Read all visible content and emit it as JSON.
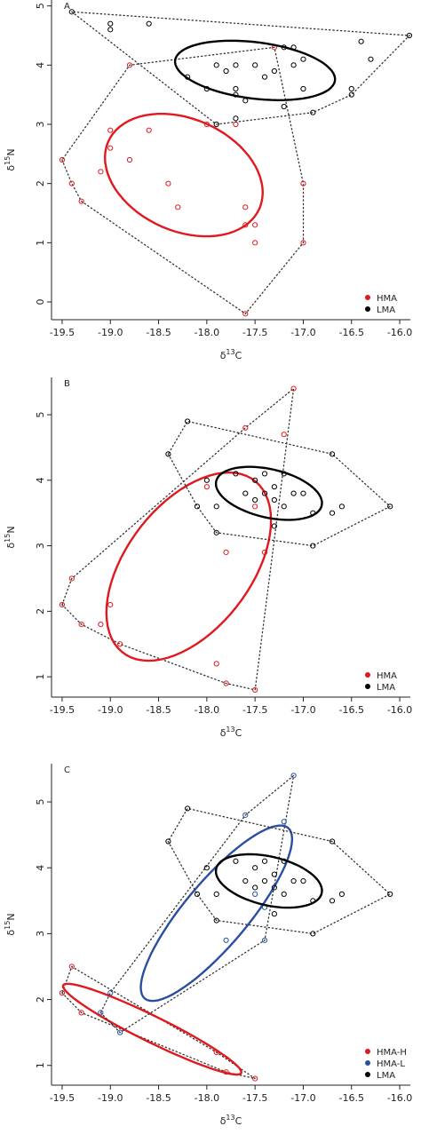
{
  "chart_data": [
    {
      "type": "scatter",
      "panel_label": "A",
      "xlabel_parts": [
        "δ",
        "13",
        "C"
      ],
      "ylabel_parts": [
        "δ",
        "15",
        "N"
      ],
      "xlim": [
        -19.61,
        -15.89
      ],
      "ylim": [
        -0.3,
        5.1
      ],
      "xticks": [
        -19.5,
        {
          "value": -19,
          "label": "-19.0"
        },
        -18.5,
        {
          "value": -18,
          "label": "-18.0"
        },
        -17.5,
        {
          "value": -17,
          "label": "-17.0"
        },
        -16.5,
        {
          "value": -16,
          "label": "-16.0"
        }
      ],
      "yticks": [
        0,
        1,
        2,
        3,
        4,
        5
      ],
      "legend": "lower right",
      "series": [
        {
          "name": "HMA",
          "color": "#e0191e",
          "x": [
            -19.5,
            -19.4,
            -19.3,
            -19.1,
            -19.0,
            -19.0,
            -18.8,
            -18.8,
            -18.6,
            -18.4,
            -18.3,
            -18.0,
            -17.7,
            -17.6,
            -17.6,
            -17.5,
            -17.5,
            -17.6,
            -17.0,
            -17.0,
            -17.3
          ],
          "values": [
            2.4,
            2.0,
            1.7,
            2.2,
            2.6,
            2.9,
            2.4,
            4.0,
            2.9,
            2.0,
            1.6,
            3.0,
            3.0,
            1.6,
            1.3,
            1.3,
            1.0,
            -0.2,
            2.0,
            1.0,
            4.3
          ]
        },
        {
          "name": "LMA",
          "color": "#000000",
          "x": [
            -19.4,
            -19.0,
            -19.0,
            -18.6,
            -18.2,
            -18.0,
            -17.9,
            -17.9,
            -17.8,
            -17.7,
            -17.7,
            -17.7,
            -17.7,
            -17.6,
            -17.5,
            -17.4,
            -17.3,
            -17.2,
            -17.2,
            -17.1,
            -17.1,
            -17.0,
            -17.0,
            -16.9,
            -16.5,
            -16.5,
            -16.4,
            -16.3,
            -15.9
          ],
          "values": [
            4.9,
            4.7,
            4.6,
            4.7,
            3.8,
            3.6,
            3.0,
            4.0,
            3.9,
            4.0,
            3.6,
            3.5,
            3.1,
            3.4,
            4.0,
            3.8,
            3.9,
            4.3,
            3.3,
            4.3,
            4.0,
            4.1,
            3.6,
            3.2,
            3.6,
            3.5,
            4.4,
            4.1,
            4.5
          ]
        }
      ]
    },
    {
      "type": "scatter",
      "panel_label": "B",
      "xlabel_parts": [
        "δ",
        "13",
        "C"
      ],
      "ylabel_parts": [
        "δ",
        "15",
        "N"
      ],
      "xlim": [
        -19.61,
        -15.89
      ],
      "ylim": [
        0.69,
        5.57
      ],
      "xticks": [
        -19.5,
        {
          "value": -19,
          "label": "-19.0"
        },
        -18.5,
        {
          "value": -18,
          "label": "-18.0"
        },
        -17.5,
        {
          "value": -17,
          "label": "-17.0"
        },
        -16.5,
        {
          "value": -16,
          "label": "-16.0"
        }
      ],
      "yticks": [
        1,
        2,
        3,
        4,
        5
      ],
      "legend": "lower right",
      "series": [
        {
          "name": "HMA",
          "color": "#e0191e",
          "x": [
            -19.5,
            -19.4,
            -19.3,
            -19.1,
            -19.0,
            -18.9,
            -18.0,
            -17.9,
            -17.8,
            -17.8,
            -17.6,
            -17.5,
            -17.5,
            -17.4,
            -17.2,
            -17.1
          ],
          "values": [
            2.1,
            2.5,
            1.8,
            1.8,
            2.1,
            1.5,
            3.9,
            1.2,
            0.9,
            2.9,
            4.8,
            3.6,
            0.8,
            2.9,
            4.7,
            5.4
          ]
        },
        {
          "name": "LMA",
          "color": "#000000",
          "x": [
            -18.4,
            -18.2,
            -18.0,
            -18.1,
            -17.9,
            -17.9,
            -17.7,
            -17.6,
            -17.5,
            -17.5,
            -17.4,
            -17.4,
            -17.3,
            -17.3,
            -17.3,
            -17.2,
            -17.1,
            -17.0,
            -16.9,
            -16.9,
            -16.7,
            -16.7,
            -16.6,
            -16.1,
            -17.2
          ],
          "values": [
            4.4,
            4.9,
            4.0,
            3.6,
            3.2,
            3.6,
            4.1,
            3.8,
            3.7,
            4.0,
            4.1,
            3.8,
            3.9,
            3.7,
            3.3,
            4.1,
            3.8,
            3.8,
            3.5,
            3.0,
            4.4,
            3.5,
            3.6,
            3.6,
            3.6
          ]
        }
      ]
    },
    {
      "type": "scatter",
      "panel_label": "C",
      "xlabel_parts": [
        "δ",
        "13",
        "C"
      ],
      "ylabel_parts": [
        "δ",
        "15",
        "N"
      ],
      "xlim": [
        -19.61,
        -15.89
      ],
      "ylim": [
        0.7,
        5.58
      ],
      "xticks": [
        -19.5,
        {
          "value": -19,
          "label": "-19.0"
        },
        -18.5,
        {
          "value": -18,
          "label": "-18.0"
        },
        -17.5,
        {
          "value": -17,
          "label": "-17.0"
        },
        -16.5,
        {
          "value": -16,
          "label": "-16.0"
        }
      ],
      "yticks": [
        1,
        2,
        3,
        4,
        5
      ],
      "legend": "lower right",
      "series": [
        {
          "name": "HMA-H",
          "color": "#e0191e",
          "x": [
            -19.5,
            -19.4,
            -19.3,
            -17.9,
            -17.8,
            -17.5
          ],
          "values": [
            2.1,
            2.5,
            1.8,
            1.2,
            0.9,
            0.8
          ]
        },
        {
          "name": "HMA-L",
          "color": "#2a4ea0",
          "x": [
            -19.1,
            -19.0,
            -18.9,
            -17.8,
            -17.6,
            -17.5,
            -17.4,
            -17.2,
            -17.1,
            -17.4
          ],
          "values": [
            1.8,
            2.1,
            1.5,
            2.9,
            4.8,
            3.6,
            2.9,
            4.7,
            5.4,
            3.4
          ]
        },
        {
          "name": "LMA",
          "color": "#000000",
          "x": [
            -18.4,
            -18.2,
            -18.0,
            -18.1,
            -17.9,
            -17.9,
            -17.7,
            -17.6,
            -17.5,
            -17.5,
            -17.4,
            -17.4,
            -17.3,
            -17.3,
            -17.3,
            -17.2,
            -17.1,
            -17.0,
            -16.9,
            -16.9,
            -16.7,
            -16.7,
            -16.6,
            -16.1,
            -17.2
          ],
          "values": [
            4.4,
            4.9,
            4.0,
            3.6,
            3.2,
            3.6,
            4.1,
            3.8,
            3.7,
            4.0,
            4.1,
            3.8,
            3.9,
            3.7,
            3.3,
            4.1,
            3.8,
            3.8,
            3.5,
            3.0,
            4.4,
            3.5,
            3.6,
            3.6,
            3.6
          ]
        }
      ]
    }
  ]
}
